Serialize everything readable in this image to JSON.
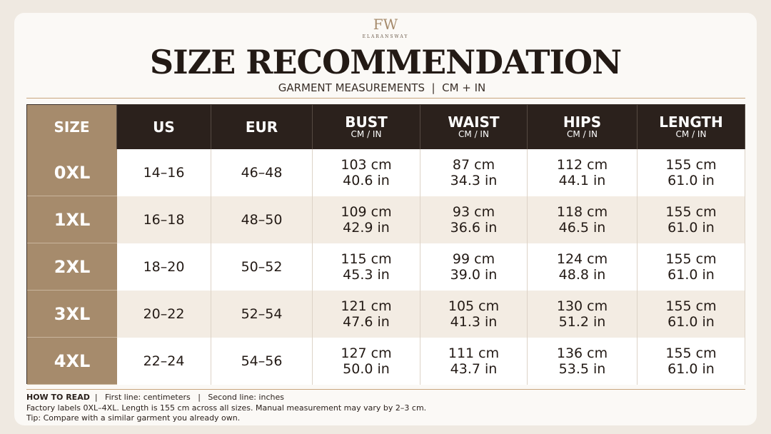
{
  "header": {
    "logo": "FW",
    "brand": "ELARANSWAY",
    "title": "SIZE RECOMMENDATION",
    "subtitle": "GARMENT MEASUREMENTS  |  CM + IN"
  },
  "table": {
    "columns": [
      {
        "label": "SIZE"
      },
      {
        "label": "US"
      },
      {
        "label": "EUR"
      },
      {
        "label": "BUST",
        "sub": "CM / IN"
      },
      {
        "label": "WAIST",
        "sub": "CM / IN"
      },
      {
        "label": "HIPS",
        "sub": "CM / IN"
      },
      {
        "label": "LENGTH",
        "sub": "CM / IN"
      }
    ],
    "rows": [
      {
        "size": "0XL",
        "us": "14–16",
        "eur": "46–48",
        "cells": [
          [
            "103 cm",
            "40.6 in"
          ],
          [
            "87 cm",
            "34.3 in"
          ],
          [
            "112 cm",
            "44.1 in"
          ],
          [
            "155 cm",
            "61.0 in"
          ]
        ]
      },
      {
        "size": "1XL",
        "us": "16–18",
        "eur": "48–50",
        "cells": [
          [
            "109 cm",
            "42.9 in"
          ],
          [
            "93 cm",
            "36.6 in"
          ],
          [
            "118 cm",
            "46.5 in"
          ],
          [
            "155 cm",
            "61.0 in"
          ]
        ]
      },
      {
        "size": "2XL",
        "us": "18–20",
        "eur": "50–52",
        "cells": [
          [
            "115 cm",
            "45.3 in"
          ],
          [
            "99 cm",
            "39.0 in"
          ],
          [
            "124 cm",
            "48.8 in"
          ],
          [
            "155 cm",
            "61.0 in"
          ]
        ]
      },
      {
        "size": "3XL",
        "us": "20–22",
        "eur": "52–54",
        "cells": [
          [
            "121 cm",
            "47.6 in"
          ],
          [
            "105 cm",
            "41.3 in"
          ],
          [
            "130 cm",
            "51.2 in"
          ],
          [
            "155 cm",
            "61.0 in"
          ]
        ]
      },
      {
        "size": "4XL",
        "us": "22–24",
        "eur": "54–56",
        "cells": [
          [
            "127 cm",
            "50.0 in"
          ],
          [
            "111 cm",
            "43.7 in"
          ],
          [
            "136 cm",
            "53.5 in"
          ],
          [
            "155 cm",
            "61.0 in"
          ]
        ]
      }
    ]
  },
  "footer": {
    "how_label": "HOW TO READ",
    "how_text": "|   First line: centimeters   |   Second line: inches",
    "note": "Factory labels 0XL–4XL. Length is 155 cm across all sizes. Manual measurement may vary by 2–3 cm.",
    "tip": "Tip: Compare with a similar garment you already own."
  }
}
